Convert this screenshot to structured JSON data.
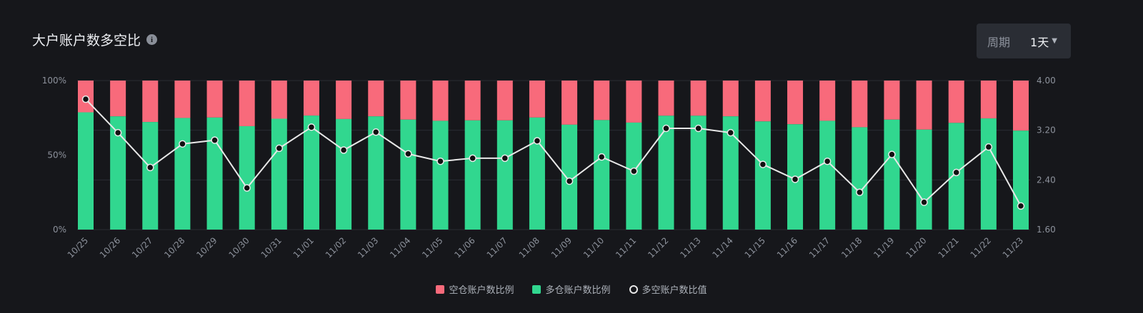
{
  "header": {
    "title": "大户账户数多空比",
    "info_icon": "info-icon"
  },
  "period": {
    "label": "周期",
    "value": "1天",
    "caret_icon": "caret-down-icon"
  },
  "colors": {
    "short": "#f86a7b",
    "long": "#31d78f",
    "line": "#e8e8e8",
    "background": "#16171b",
    "grid": "#2a2c33"
  },
  "chart_data": {
    "type": "bar+line",
    "categories": [
      "10/25",
      "10/26",
      "10/27",
      "10/28",
      "10/29",
      "10/30",
      "10/31",
      "11/01",
      "11/02",
      "11/03",
      "11/04",
      "11/05",
      "11/06",
      "11/07",
      "11/08",
      "11/09",
      "11/10",
      "11/11",
      "11/12",
      "11/13",
      "11/14",
      "11/15",
      "11/16",
      "11/17",
      "11/18",
      "11/19",
      "11/20",
      "11/21",
      "11/22",
      "11/23"
    ],
    "series": [
      {
        "name": "空仓账户数比例",
        "type": "stacked-bar",
        "axis": "left",
        "values": [
          21.3,
          24.0,
          27.8,
          25.1,
          24.8,
          30.6,
          25.6,
          23.5,
          25.8,
          24.0,
          26.2,
          27.0,
          26.7,
          26.7,
          24.8,
          29.6,
          26.5,
          28.2,
          23.6,
          23.6,
          24.0,
          27.4,
          29.3,
          27.0,
          31.3,
          26.2,
          32.9,
          28.4,
          25.4,
          33.6
        ]
      },
      {
        "name": "多仓账户数比例",
        "type": "stacked-bar",
        "axis": "left",
        "values": [
          78.7,
          76.0,
          72.2,
          74.9,
          75.2,
          69.4,
          74.4,
          76.5,
          74.2,
          76.0,
          73.8,
          73.0,
          73.3,
          73.3,
          75.2,
          70.4,
          73.5,
          71.8,
          76.4,
          76.4,
          76.0,
          72.6,
          70.7,
          73.0,
          68.7,
          73.8,
          67.1,
          71.6,
          74.6,
          66.4
        ]
      },
      {
        "name": "多空账户数比值",
        "type": "line",
        "axis": "right",
        "values": [
          3.7,
          3.16,
          2.6,
          2.98,
          3.04,
          2.27,
          2.91,
          3.25,
          2.88,
          3.17,
          2.82,
          2.7,
          2.75,
          2.75,
          3.03,
          2.38,
          2.77,
          2.54,
          3.23,
          3.23,
          3.16,
          2.65,
          2.41,
          2.7,
          2.2,
          2.81,
          2.04,
          2.52,
          2.93,
          1.98
        ]
      }
    ],
    "left_axis": {
      "range": [
        0,
        100
      ],
      "ticks": [
        "0%",
        "50%",
        "100%"
      ]
    },
    "right_axis": {
      "range": [
        1.6,
        4.0
      ],
      "ticks": [
        "1.60",
        "2.40",
        "3.20",
        "4.00"
      ]
    },
    "grid": true,
    "legend_placement": "bottom"
  }
}
